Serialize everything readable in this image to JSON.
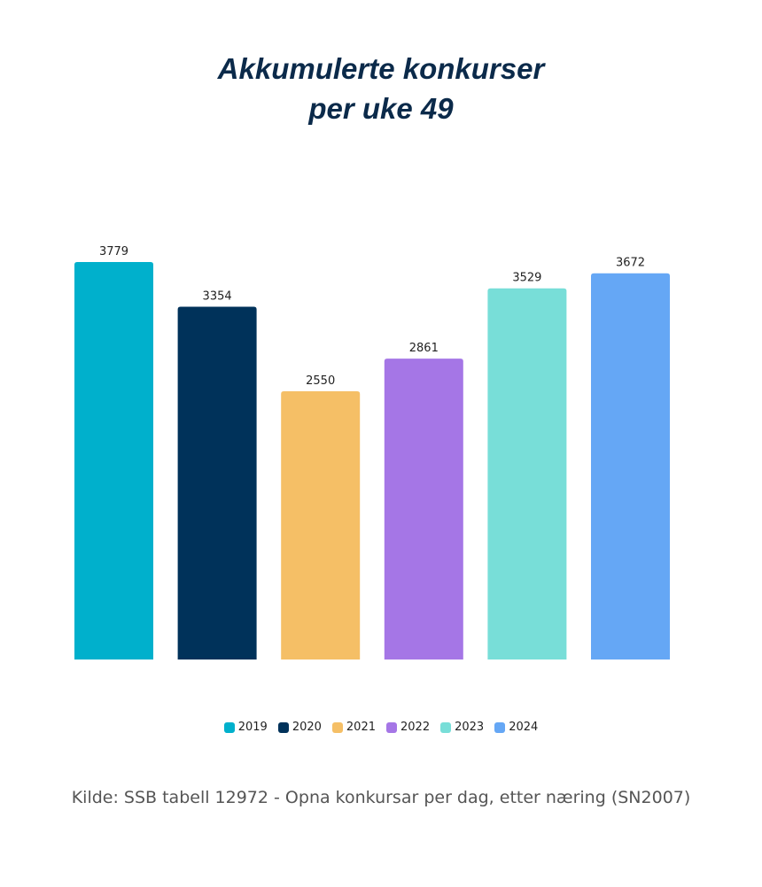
{
  "title_line1": "Akkumulerte konkurser",
  "title_line2": "per uke 49",
  "source": "Kilde: SSB tabell 12972 - Opna konkursar per dag, etter næring (SN2007)",
  "chart_data": {
    "type": "bar",
    "title": "Akkumulerte konkurser per uke 49",
    "categories": [
      "2019",
      "2020",
      "2021",
      "2022",
      "2023",
      "2024"
    ],
    "values": [
      3779,
      3354,
      2550,
      2861,
      3529,
      3672
    ],
    "colors": [
      "#00b0cc",
      "#00325a",
      "#f5bf66",
      "#a576e6",
      "#78ded8",
      "#65a7f5"
    ],
    "legend": [
      "2019",
      "2020",
      "2021",
      "2022",
      "2023",
      "2024"
    ],
    "legend_placement": "bottom",
    "grid": false,
    "ylim": [
      0,
      3779
    ]
  }
}
